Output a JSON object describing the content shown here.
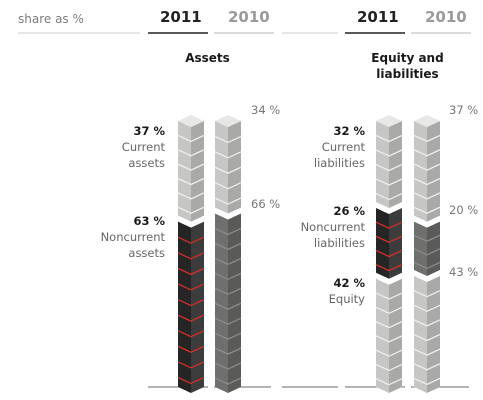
{
  "header": {
    "share_label": "share as %",
    "years": [
      "2011",
      "2010"
    ]
  },
  "panels": [
    {
      "title": "Assets"
    },
    {
      "title_line1": "Equity and",
      "title_line2": "liabilities"
    }
  ],
  "chart_data": [
    {
      "type": "bar",
      "title": "Assets",
      "categories": [
        "2011",
        "2010"
      ],
      "unit": "share as %",
      "series": [
        {
          "name": "Noncurrent assets",
          "values": [
            63,
            66
          ]
        },
        {
          "name": "Current assets",
          "values": [
            37,
            34
          ]
        }
      ]
    },
    {
      "type": "bar",
      "title": "Equity and liabilities",
      "categories": [
        "2011",
        "2010"
      ],
      "unit": "share as %",
      "series": [
        {
          "name": "Equity",
          "values": [
            42,
            43
          ]
        },
        {
          "name": "Noncurrent liabilities",
          "values": [
            26,
            20
          ]
        },
        {
          "name": "Current liabilities",
          "values": [
            32,
            37
          ]
        }
      ]
    }
  ],
  "labels": {
    "assets_2011_current": {
      "value": "37 %",
      "line1": "Current",
      "line2": "assets"
    },
    "assets_2011_noncurrent": {
      "value": "63 %",
      "line1": "Noncurrent",
      "line2": "assets"
    },
    "assets_2010_current": "34 %",
    "assets_2010_noncurrent": "66 %",
    "eq_2011_current": {
      "value": "32 %",
      "line1": "Current",
      "line2": "liabilities"
    },
    "eq_2011_noncurrent": {
      "value": "26 %",
      "line1": "Noncurrent",
      "line2": "liabilities"
    },
    "eq_2011_equity": {
      "value": "42 %",
      "line1": "Equity"
    },
    "eq_2010_current": "37 %",
    "eq_2010_noncurrent": "20 %",
    "eq_2010_equity": "43 %"
  },
  "colors": {
    "light_face": "#c6c6c4",
    "light_side": "#a9a9a7",
    "light_top": "#e7e7e5",
    "mid_face": "#6f6f6d",
    "mid_side": "#5a5a58",
    "dark_face": "#252525",
    "dark_side": "#3c3c3c",
    "red": "#d0302a"
  }
}
